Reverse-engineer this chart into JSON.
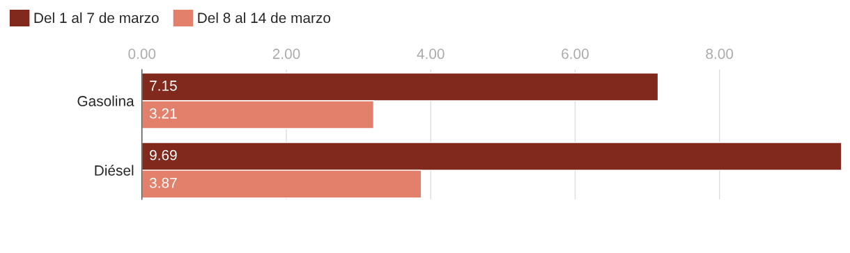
{
  "chart_data": {
    "type": "bar",
    "orientation": "horizontal",
    "categories": [
      "Gasolina",
      "Diésel"
    ],
    "series": [
      {
        "name": "Del 1 al 7 de marzo",
        "color": "#81291d",
        "values": [
          7.15,
          9.69
        ]
      },
      {
        "name": "Del 8 al 14 de marzo",
        "color": "#e2806b",
        "values": [
          3.21,
          3.87
        ]
      }
    ],
    "xlim": [
      0,
      9.69
    ],
    "xticks": [
      {
        "value": 0,
        "label": "0.00"
      },
      {
        "value": 2,
        "label": "2.00"
      },
      {
        "value": 4,
        "label": "4.00"
      },
      {
        "value": 6,
        "label": "6.00"
      },
      {
        "value": 8,
        "label": "8.00"
      }
    ],
    "grid": "x",
    "legend": "top left",
    "data_labels": true
  }
}
